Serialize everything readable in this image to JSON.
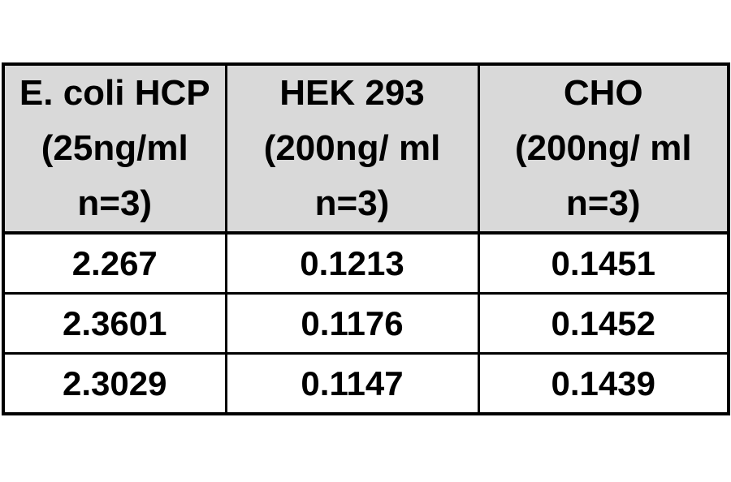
{
  "page": {
    "background": "#ffffff"
  },
  "table": {
    "header_bg": "#d9d9d9",
    "border_color": "#000000",
    "columns": [
      {
        "lines": [
          "E. coli HCP",
          "(25ng/ml",
          "n=3)"
        ]
      },
      {
        "lines": [
          "HEK 293",
          "(200ng/ ml",
          "n=3)"
        ]
      },
      {
        "lines": [
          "CHO",
          "(200ng/ ml",
          "n=3)"
        ]
      }
    ],
    "rows": [
      [
        "2.267",
        "0.1213",
        "0.1451"
      ],
      [
        "2.3601",
        "0.1176",
        "0.1452"
      ],
      [
        "2.3029",
        "0.1147",
        "0.1439"
      ]
    ]
  },
  "chart_data": {
    "type": "table",
    "title": "",
    "columns": [
      "E. coli HCP (25ng/ml n=3)",
      "HEK 293 (200ng/ml n=3)",
      "CHO (200ng/ml n=3)"
    ],
    "rows": [
      [
        2.267,
        0.1213,
        0.1451
      ],
      [
        2.3601,
        0.1176,
        0.1452
      ],
      [
        2.3029,
        0.1147,
        0.1439
      ]
    ],
    "notes": "OD readings table; header row shaded gray, black grid borders"
  }
}
